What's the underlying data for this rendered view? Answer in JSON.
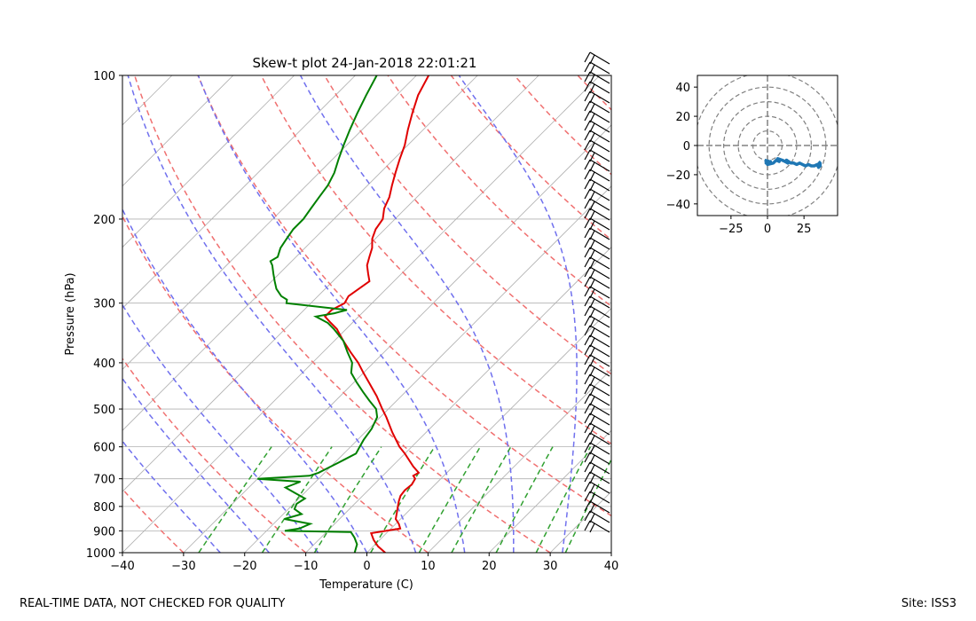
{
  "chart_data": [
    {
      "type": "skew-t",
      "title": "Skew-t plot 24-Jan-2018 22:01:21",
      "xlabel": "Temperature (C)",
      "ylabel": "Pressure (hPa)",
      "xlim": [
        -40,
        40
      ],
      "ylim": [
        1000,
        100
      ],
      "xticks": [
        -40,
        -30,
        -20,
        -10,
        0,
        10,
        20,
        30,
        40
      ],
      "xtick_labels": [
        "−40",
        "−30",
        "−20",
        "−10",
        "0",
        "10",
        "20",
        "30",
        "40"
      ],
      "yticks": [
        1000,
        900,
        800,
        700,
        600,
        500,
        400,
        300,
        200,
        100
      ],
      "ytick_labels": [
        "1000",
        "900",
        "800",
        "700",
        "600",
        "500",
        "400",
        "300",
        "200",
        "100"
      ],
      "grid": true,
      "series": [
        {
          "name": "Temperature",
          "color": "#e00000",
          "p": [
            1000,
            970,
            940,
            910,
            890,
            870,
            850,
            820,
            800,
            780,
            760,
            740,
            720,
            700,
            690,
            680,
            660,
            620,
            600,
            560,
            520,
            500,
            470,
            440,
            420,
            400,
            380,
            360,
            340,
            330,
            320,
            310,
            300,
            290,
            280,
            270,
            260,
            250,
            240,
            230,
            220,
            210,
            200,
            190,
            180,
            170,
            160,
            150,
            140,
            130,
            120,
            110,
            100
          ],
          "t": [
            3.0,
            0.8,
            -1.0,
            -2.5,
            1.5,
            0.5,
            -0.8,
            -1.8,
            -2.5,
            -3.2,
            -3.8,
            -4.0,
            -3.8,
            -4.2,
            -5.0,
            -4.6,
            -6.5,
            -10.0,
            -12.0,
            -15.5,
            -19.0,
            -21.0,
            -24.0,
            -27.5,
            -30.0,
            -32.5,
            -35.5,
            -38.5,
            -41.5,
            -43.5,
            -45.5,
            -45.5,
            -44.5,
            -45.0,
            -44.5,
            -44.0,
            -45.5,
            -47.0,
            -48.0,
            -49.0,
            -50.5,
            -51.5,
            -52.0,
            -53.5,
            -54.5,
            -56.0,
            -57.5,
            -59.0,
            -60.5,
            -62.5,
            -64.5,
            -66.5,
            -68.0
          ]
        },
        {
          "name": "Dewpoint",
          "color": "#008000",
          "p": [
            1000,
            960,
            930,
            905,
            900,
            890,
            870,
            850,
            830,
            810,
            790,
            770,
            750,
            730,
            710,
            700,
            690,
            680,
            660,
            640,
            620,
            600,
            580,
            550,
            520,
            500,
            480,
            460,
            440,
            420,
            400,
            380,
            360,
            340,
            330,
            320,
            315,
            310,
            300,
            295,
            290,
            280,
            270,
            260,
            250,
            245,
            240,
            230,
            220,
            210,
            200,
            190,
            180,
            170,
            160,
            150,
            140,
            130,
            120,
            110,
            100
          ],
          "td": [
            -2.0,
            -3.0,
            -4.5,
            -6.0,
            -17.0,
            -15.0,
            -14.0,
            -19.0,
            -17.0,
            -19.0,
            -19.5,
            -19.0,
            -21.5,
            -24.0,
            -22.5,
            -30.0,
            -22.0,
            -21.0,
            -20.0,
            -19.0,
            -18.0,
            -18.5,
            -19.0,
            -19.5,
            -20.5,
            -22.0,
            -24.5,
            -27.0,
            -29.5,
            -32.0,
            -33.5,
            -36.0,
            -38.5,
            -42.0,
            -44.0,
            -47.0,
            -44.5,
            -43.0,
            -54.0,
            -54.5,
            -56.0,
            -58.0,
            -59.5,
            -61.0,
            -62.5,
            -63.5,
            -63.0,
            -64.0,
            -64.5,
            -65.0,
            -65.0,
            -65.5,
            -66.0,
            -66.5,
            -67.5,
            -69.0,
            -70.5,
            -72.0,
            -73.5,
            -75.0,
            -76.5
          ]
        }
      ],
      "annotations": [
        "REAL-TIME DATA, NOT CHECKED FOR QUALITY",
        "Site: ISS3"
      ]
    },
    {
      "type": "scatter",
      "title": "",
      "xlabel": "",
      "ylabel": "",
      "xlim": [
        -48,
        48
      ],
      "ylim": [
        -48,
        48
      ],
      "xticks": [
        -25,
        0,
        25
      ],
      "xtick_labels": [
        "−25",
        "0",
        "25"
      ],
      "yticks": [
        -40,
        -20,
        0,
        20,
        40
      ],
      "ytick_labels": [
        "−40",
        "−20",
        "0",
        "20",
        "40"
      ],
      "range_rings": [
        10,
        20,
        30,
        40,
        50
      ],
      "series": [
        {
          "name": "Hodograph",
          "color": "#1f77b4",
          "u": [
            -2,
            1,
            -1,
            2,
            0,
            4,
            6,
            8,
            7,
            10,
            12,
            14,
            13,
            16,
            18,
            20,
            22,
            24,
            26,
            28,
            30,
            32,
            34,
            35,
            36,
            36,
            35
          ],
          "v": [
            -10,
            -11,
            -12,
            -11,
            -13,
            -12,
            -10,
            -11,
            -9,
            -10,
            -11,
            -12,
            -10,
            -12,
            -12,
            -13,
            -12,
            -13,
            -14,
            -13,
            -14,
            -14,
            -13,
            -15,
            -14,
            -12,
            -11
          ]
        }
      ]
    }
  ],
  "footer": {
    "left": "REAL-TIME DATA, NOT CHECKED FOR QUALITY",
    "right": "Site: ISS3"
  }
}
